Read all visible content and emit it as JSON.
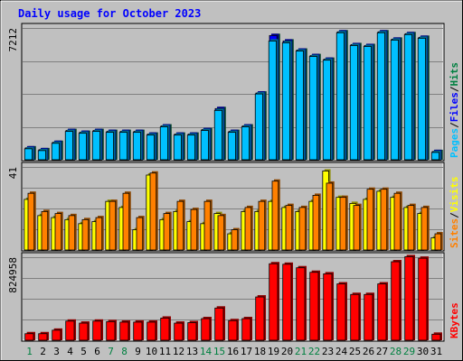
{
  "chart_data": {
    "type": "bar",
    "title": "Daily usage for October 2023",
    "categories": [
      "1",
      "2",
      "3",
      "4",
      "5",
      "6",
      "7",
      "8",
      "9",
      "10",
      "11",
      "12",
      "13",
      "14",
      "15",
      "16",
      "17",
      "18",
      "19",
      "20",
      "21",
      "22",
      "23",
      "24",
      "25",
      "26",
      "27",
      "28",
      "29",
      "30",
      "31"
    ],
    "weekend_days": [
      "1",
      "7",
      "8",
      "14",
      "15",
      "21",
      "22",
      "28",
      "29"
    ],
    "panels": [
      {
        "id": "top",
        "ymax_label": "7212",
        "ymax": 7212,
        "grid": true,
        "legend": [
          "Pages",
          "/",
          "Files",
          "/",
          "Hits"
        ],
        "legend_colors": [
          "#00c0ff",
          "#000000",
          "#0000ff",
          "#000000",
          "#008040"
        ],
        "series": [
          {
            "name": "Hits",
            "color": "#008040",
            "values": [
              650,
              550,
              950,
              1600,
              1500,
              1600,
              1550,
              1550,
              1550,
              1400,
              1850,
              1400,
              1400,
              1650,
              2800,
              1550,
              1850,
              3650,
              6800,
              6500,
              6000,
              5700,
              5500,
              7000,
              6300,
              6250,
              7000,
              6600,
              6900,
              6700,
              450
            ]
          },
          {
            "name": "Files",
            "color": "#0000ff",
            "values": [
              650,
              550,
              950,
              1600,
              1500,
              1600,
              1550,
              1550,
              1550,
              1400,
              1850,
              1400,
              1400,
              1650,
              2800,
              1550,
              1850,
              3650,
              6800,
              6500,
              6000,
              5700,
              5500,
              7000,
              6300,
              6250,
              7000,
              6600,
              6900,
              6700,
              450
            ]
          },
          {
            "name": "Pages",
            "color": "#00c0ff",
            "values": [
              600,
              500,
              900,
              1550,
              1450,
              1550,
              1500,
              1500,
              1500,
              1350,
              1800,
              1350,
              1350,
              1600,
              2700,
              1500,
              1800,
              3600,
              6500,
              6400,
              5950,
              5650,
              5450,
              6950,
              6250,
              6200,
              6950,
              6550,
              6850,
              6650,
              400
            ]
          }
        ]
      },
      {
        "id": "middle",
        "ymax_label": "41",
        "ymax": 41,
        "grid": true,
        "legend": [
          "Sites",
          "/",
          "Visits"
        ],
        "legend_colors": [
          "#ff8000",
          "#000000",
          "#ffff00"
        ],
        "series": [
          {
            "name": "Visits",
            "color": "#ffff00",
            "values": [
              25,
              17,
              16,
              15,
              13,
              14,
              24,
              21,
              10,
              37,
              15,
              19,
              14,
              13,
              18,
              8,
              19,
              19,
              24,
              21,
              19,
              24,
              39,
              26,
              23,
              25,
              29,
              26,
              21,
              18,
              6
            ]
          },
          {
            "name": "Sites",
            "color": "#ff8000",
            "values": [
              28,
              19,
              18,
              17,
              15,
              16,
              24,
              28,
              16,
              38,
              18,
              24,
              20,
              24,
              17,
              10,
              21,
              24,
              34,
              22,
              21,
              27,
              33,
              26,
              22,
              30,
              30,
              28,
              22,
              21,
              8
            ]
          }
        ]
      },
      {
        "id": "bottom",
        "ymax_label": "824958",
        "ymax": 824958,
        "grid": true,
        "legend": [
          "KBytes"
        ],
        "legend_colors": [
          "#ff0000"
        ],
        "series": [
          {
            "name": "KBytes",
            "color": "#ff0000",
            "values": [
              65000,
              65000,
              100000,
              190000,
              170000,
              190000,
              185000,
              180000,
              180000,
              180000,
              220000,
              170000,
              175000,
              215000,
              320000,
              195000,
              215000,
              430000,
              760000,
              755000,
              720000,
              675000,
              660000,
              560000,
              455000,
              455000,
              560000,
              780000,
              830000,
              815000,
              60000
            ]
          }
        ]
      }
    ]
  }
}
